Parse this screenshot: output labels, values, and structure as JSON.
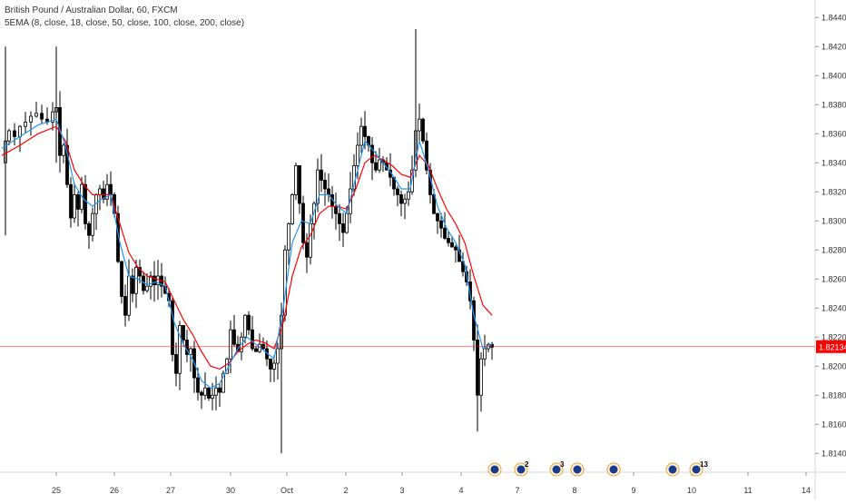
{
  "chart_data": {
    "type": "candlestick",
    "title": "British Pound / Australian Dollar, 60, FXCM",
    "indicator_label": "5EMA (8, close, 18, close, 50, close, 100, close, 200, close)",
    "ylim": [
      1.8127,
      1.8452
    ],
    "y_ticks": [
      "1.81400",
      "1.81600",
      "1.81800",
      "1.82000",
      "1.82200",
      "1.82400",
      "1.82600",
      "1.82800",
      "1.83000",
      "1.83200",
      "1.83400",
      "1.83600",
      "1.83800",
      "1.84000",
      "1.84200",
      "1.84400"
    ],
    "x_ticks": [
      "25",
      "26",
      "27",
      "30",
      "Oct",
      "2",
      "3",
      "4",
      "7",
      "8",
      "9",
      "10",
      "11",
      "14"
    ],
    "last_price": "1.82134",
    "last_price_value": 1.82134,
    "price_color": "#ff0000",
    "candle_color": "#000000",
    "ema_colors": [
      "#2196f3",
      "#ff0000"
    ],
    "close_path": [
      [
        0,
        1.834
      ],
      [
        4,
        1.8355
      ],
      [
        8,
        1.8362
      ],
      [
        14,
        1.8358
      ],
      [
        20,
        1.8365
      ],
      [
        26,
        1.8368
      ],
      [
        32,
        1.8372
      ],
      [
        38,
        1.8374
      ],
      [
        44,
        1.837
      ],
      [
        50,
        1.8368
      ],
      [
        56,
        1.8375
      ],
      [
        60,
        1.8378
      ],
      [
        64,
        1.8345
      ],
      [
        68,
        1.8352
      ],
      [
        72,
        1.8325
      ],
      [
        76,
        1.8302
      ],
      [
        80,
        1.8318
      ],
      [
        84,
        1.8308
      ],
      [
        88,
        1.8325
      ],
      [
        92,
        1.8298
      ],
      [
        96,
        1.829
      ],
      [
        100,
        1.8305
      ],
      [
        104,
        1.8318
      ],
      [
        108,
        1.8322
      ],
      [
        112,
        1.8315
      ],
      [
        116,
        1.8325
      ],
      [
        120,
        1.8318
      ],
      [
        124,
        1.8305
      ],
      [
        128,
        1.8272
      ],
      [
        132,
        1.8248
      ],
      [
        136,
        1.8235
      ],
      [
        140,
        1.8262
      ],
      [
        144,
        1.825
      ],
      [
        148,
        1.8268
      ],
      [
        152,
        1.8262
      ],
      [
        156,
        1.8252
      ],
      [
        160,
        1.8255
      ],
      [
        164,
        1.8262
      ],
      [
        168,
        1.8256
      ],
      [
        172,
        1.8262
      ],
      [
        176,
        1.8255
      ],
      [
        180,
        1.825
      ],
      [
        184,
        1.8245
      ],
      [
        188,
        1.8208
      ],
      [
        192,
        1.8195
      ],
      [
        196,
        1.8228
      ],
      [
        200,
        1.8218
      ],
      [
        204,
        1.8208
      ],
      [
        208,
        1.8212
      ],
      [
        212,
        1.8192
      ],
      [
        216,
        1.8182
      ],
      [
        220,
        1.818
      ],
      [
        224,
        1.8185
      ],
      [
        228,
        1.8178
      ],
      [
        232,
        1.818
      ],
      [
        236,
        1.8185
      ],
      [
        240,
        1.8182
      ],
      [
        244,
        1.8195
      ],
      [
        248,
        1.8205
      ],
      [
        252,
        1.8225
      ],
      [
        256,
        1.8215
      ],
      [
        260,
        1.821
      ],
      [
        264,
        1.822
      ],
      [
        268,
        1.8235
      ],
      [
        272,
        1.8225
      ],
      [
        276,
        1.8212
      ],
      [
        280,
        1.821
      ],
      [
        284,
        1.8215
      ],
      [
        288,
        1.8212
      ],
      [
        292,
        1.8205
      ],
      [
        296,
        1.8198
      ],
      [
        300,
        1.8202
      ],
      [
        304,
        1.8212
      ],
      [
        308,
        1.8235
      ],
      [
        312,
        1.828
      ],
      [
        316,
        1.8298
      ],
      [
        320,
        1.8318
      ],
      [
        324,
        1.8338
      ],
      [
        328,
        1.8312
      ],
      [
        332,
        1.8285
      ],
      [
        336,
        1.8275
      ],
      [
        340,
        1.8298
      ],
      [
        344,
        1.8312
      ],
      [
        348,
        1.8335
      ],
      [
        352,
        1.8328
      ],
      [
        356,
        1.8322
      ],
      [
        360,
        1.8318
      ],
      [
        364,
        1.831
      ],
      [
        368,
        1.8305
      ],
      [
        372,
        1.8298
      ],
      [
        376,
        1.8292
      ],
      [
        380,
        1.8305
      ],
      [
        384,
        1.8322
      ],
      [
        388,
        1.8338
      ],
      [
        392,
        1.8352
      ],
      [
        396,
        1.8365
      ],
      [
        400,
        1.8358
      ],
      [
        404,
        1.8352
      ],
      [
        408,
        1.834
      ],
      [
        412,
        1.8335
      ],
      [
        416,
        1.8342
      ],
      [
        420,
        1.834
      ],
      [
        424,
        1.8335
      ],
      [
        428,
        1.833
      ],
      [
        432,
        1.8322
      ],
      [
        436,
        1.8318
      ],
      [
        440,
        1.8312
      ],
      [
        444,
        1.8315
      ],
      [
        448,
        1.832
      ],
      [
        452,
        1.8335
      ],
      [
        456,
        1.8362
      ],
      [
        460,
        1.837
      ],
      [
        464,
        1.8355
      ],
      [
        468,
        1.8335
      ],
      [
        472,
        1.8318
      ],
      [
        476,
        1.8305
      ],
      [
        480,
        1.83
      ],
      [
        484,
        1.8295
      ],
      [
        488,
        1.8288
      ],
      [
        492,
        1.8285
      ],
      [
        496,
        1.8282
      ],
      [
        500,
        1.828
      ],
      [
        504,
        1.8272
      ],
      [
        508,
        1.8265
      ],
      [
        512,
        1.8258
      ],
      [
        516,
        1.8245
      ],
      [
        520,
        1.8218
      ],
      [
        524,
        1.818
      ],
      [
        528,
        1.8205
      ],
      [
        532,
        1.8212
      ],
      [
        536,
        1.8215
      ],
      [
        540,
        1.8213
      ]
    ],
    "ema_fast": [
      [
        0,
        1.835
      ],
      [
        20,
        1.8358
      ],
      [
        40,
        1.8366
      ],
      [
        60,
        1.837
      ],
      [
        70,
        1.8352
      ],
      [
        80,
        1.8325
      ],
      [
        90,
        1.8315
      ],
      [
        100,
        1.831
      ],
      [
        110,
        1.8315
      ],
      [
        120,
        1.8318
      ],
      [
        130,
        1.8285
      ],
      [
        140,
        1.8262
      ],
      [
        150,
        1.826
      ],
      [
        160,
        1.8256
      ],
      [
        170,
        1.8258
      ],
      [
        180,
        1.8255
      ],
      [
        190,
        1.823
      ],
      [
        200,
        1.8215
      ],
      [
        210,
        1.8205
      ],
      [
        220,
        1.819
      ],
      [
        230,
        1.8185
      ],
      [
        240,
        1.8188
      ],
      [
        250,
        1.82
      ],
      [
        260,
        1.8212
      ],
      [
        270,
        1.822
      ],
      [
        280,
        1.8215
      ],
      [
        290,
        1.821
      ],
      [
        300,
        1.8205
      ],
      [
        310,
        1.824
      ],
      [
        320,
        1.8285
      ],
      [
        330,
        1.83
      ],
      [
        340,
        1.8298
      ],
      [
        350,
        1.8318
      ],
      [
        360,
        1.8318
      ],
      [
        370,
        1.831
      ],
      [
        380,
        1.8305
      ],
      [
        390,
        1.833
      ],
      [
        400,
        1.8355
      ],
      [
        410,
        1.8348
      ],
      [
        420,
        1.834
      ],
      [
        430,
        1.8332
      ],
      [
        440,
        1.8322
      ],
      [
        450,
        1.8322
      ],
      [
        460,
        1.8355
      ],
      [
        470,
        1.8335
      ],
      [
        480,
        1.831
      ],
      [
        490,
        1.8295
      ],
      [
        500,
        1.8285
      ],
      [
        510,
        1.827
      ],
      [
        520,
        1.8235
      ],
      [
        530,
        1.8212
      ],
      [
        540,
        1.8215
      ]
    ],
    "ema_slow": [
      [
        0,
        1.8345
      ],
      [
        20,
        1.8352
      ],
      [
        40,
        1.836
      ],
      [
        60,
        1.8365
      ],
      [
        70,
        1.8355
      ],
      [
        80,
        1.8335
      ],
      [
        90,
        1.8325
      ],
      [
        100,
        1.8318
      ],
      [
        110,
        1.8318
      ],
      [
        120,
        1.8318
      ],
      [
        130,
        1.8298
      ],
      [
        140,
        1.8278
      ],
      [
        150,
        1.8268
      ],
      [
        160,
        1.8262
      ],
      [
        170,
        1.826
      ],
      [
        180,
        1.8258
      ],
      [
        190,
        1.8245
      ],
      [
        200,
        1.8232
      ],
      [
        210,
        1.8222
      ],
      [
        220,
        1.821
      ],
      [
        230,
        1.82
      ],
      [
        240,
        1.8198
      ],
      [
        250,
        1.8202
      ],
      [
        260,
        1.821
      ],
      [
        270,
        1.8215
      ],
      [
        280,
        1.8218
      ],
      [
        290,
        1.8216
      ],
      [
        300,
        1.8212
      ],
      [
        310,
        1.823
      ],
      [
        320,
        1.8262
      ],
      [
        330,
        1.8282
      ],
      [
        340,
        1.829
      ],
      [
        350,
        1.8305
      ],
      [
        360,
        1.831
      ],
      [
        370,
        1.831
      ],
      [
        380,
        1.8308
      ],
      [
        390,
        1.8322
      ],
      [
        400,
        1.834
      ],
      [
        410,
        1.8345
      ],
      [
        420,
        1.8342
      ],
      [
        430,
        1.8338
      ],
      [
        440,
        1.8332
      ],
      [
        450,
        1.833
      ],
      [
        460,
        1.8345
      ],
      [
        470,
        1.8338
      ],
      [
        480,
        1.8322
      ],
      [
        490,
        1.8308
      ],
      [
        500,
        1.8298
      ],
      [
        510,
        1.8285
      ],
      [
        520,
        1.8262
      ],
      [
        530,
        1.8242
      ],
      [
        540,
        1.8235
      ]
    ],
    "event_markers": [
      {
        "label": ""
      },
      {
        "label": "2"
      },
      {
        "label": "3"
      },
      {
        "label": ""
      },
      {
        "label": ""
      },
      {
        "label": ""
      },
      {
        "label": "13"
      }
    ]
  }
}
